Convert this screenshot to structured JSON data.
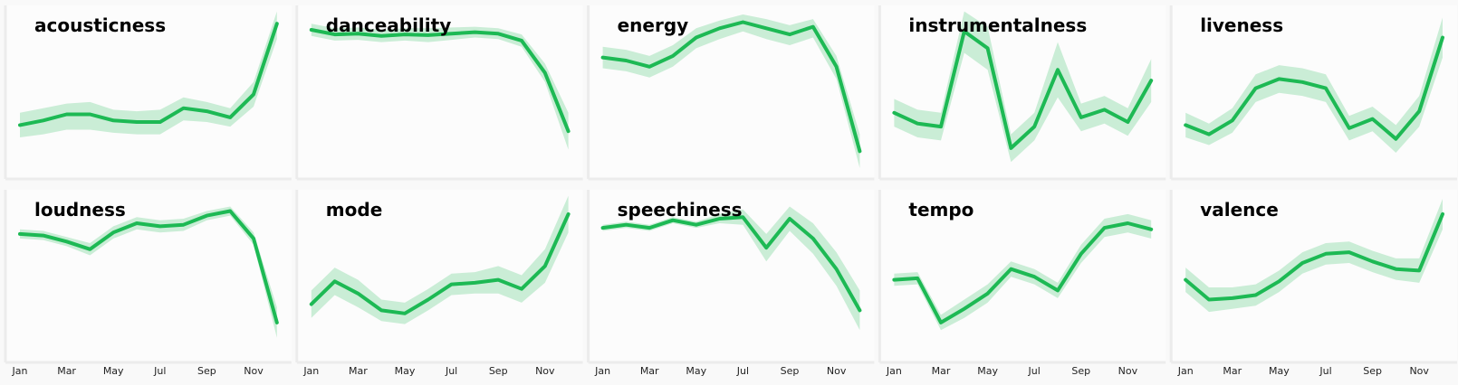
{
  "colors": {
    "line": "#1db954",
    "band": "#1db954"
  },
  "x_ticks": [
    "Jan",
    "Mar",
    "May",
    "Jul",
    "Sep",
    "Nov"
  ],
  "chart_data": [
    {
      "type": "line",
      "title": "acousticness",
      "x": [
        1,
        2,
        3,
        4,
        5,
        6,
        7,
        8,
        9,
        10,
        11,
        12
      ],
      "values": [
        0.28,
        0.31,
        0.35,
        0.35,
        0.31,
        0.3,
        0.3,
        0.39,
        0.37,
        0.33,
        0.48,
        0.94
      ],
      "lower": [
        0.2,
        0.22,
        0.25,
        0.25,
        0.23,
        0.22,
        0.22,
        0.31,
        0.3,
        0.27,
        0.4,
        0.84
      ],
      "upper": [
        0.36,
        0.39,
        0.42,
        0.43,
        0.38,
        0.37,
        0.38,
        0.46,
        0.43,
        0.39,
        0.56,
        1.02
      ]
    },
    {
      "type": "line",
      "title": "danceability",
      "x": [
        1,
        2,
        3,
        4,
        5,
        6,
        7,
        8,
        9,
        10,
        11,
        12
      ],
      "values": [
        0.9,
        0.87,
        0.875,
        0.86,
        0.87,
        0.865,
        0.875,
        0.885,
        0.875,
        0.83,
        0.62,
        0.24
      ],
      "lower": [
        0.86,
        0.83,
        0.835,
        0.82,
        0.83,
        0.82,
        0.835,
        0.85,
        0.84,
        0.79,
        0.56,
        0.12
      ],
      "upper": [
        0.94,
        0.91,
        0.915,
        0.9,
        0.91,
        0.91,
        0.915,
        0.92,
        0.91,
        0.87,
        0.68,
        0.36
      ]
    },
    {
      "type": "line",
      "title": "energy",
      "x": [
        1,
        2,
        3,
        4,
        5,
        6,
        7,
        8,
        9,
        10,
        11,
        12
      ],
      "values": [
        0.72,
        0.7,
        0.66,
        0.73,
        0.85,
        0.91,
        0.95,
        0.91,
        0.87,
        0.92,
        0.66,
        0.11
      ],
      "lower": [
        0.65,
        0.63,
        0.59,
        0.66,
        0.78,
        0.84,
        0.89,
        0.84,
        0.8,
        0.85,
        0.58,
        0.0
      ],
      "upper": [
        0.79,
        0.77,
        0.73,
        0.8,
        0.91,
        0.96,
        1.0,
        0.97,
        0.93,
        0.97,
        0.73,
        0.22
      ]
    },
    {
      "type": "line",
      "title": "instrumentalness",
      "x": [
        1,
        2,
        3,
        4,
        5,
        6,
        7,
        8,
        9,
        10,
        11,
        12
      ],
      "values": [
        0.36,
        0.29,
        0.27,
        0.89,
        0.78,
        0.13,
        0.27,
        0.64,
        0.33,
        0.38,
        0.3,
        0.57
      ],
      "lower": [
        0.27,
        0.2,
        0.18,
        0.75,
        0.64,
        0.04,
        0.18,
        0.46,
        0.24,
        0.29,
        0.21,
        0.43
      ],
      "upper": [
        0.45,
        0.38,
        0.36,
        1.02,
        0.92,
        0.22,
        0.36,
        0.82,
        0.42,
        0.47,
        0.39,
        0.71
      ]
    },
    {
      "type": "line",
      "title": "liveness",
      "x": [
        1,
        2,
        3,
        4,
        5,
        6,
        7,
        8,
        9,
        10,
        11,
        12
      ],
      "values": [
        0.28,
        0.22,
        0.31,
        0.52,
        0.58,
        0.56,
        0.52,
        0.26,
        0.32,
        0.19,
        0.37,
        0.85
      ],
      "lower": [
        0.2,
        0.15,
        0.23,
        0.43,
        0.49,
        0.47,
        0.43,
        0.18,
        0.24,
        0.1,
        0.27,
        0.72
      ],
      "upper": [
        0.36,
        0.29,
        0.39,
        0.61,
        0.67,
        0.65,
        0.61,
        0.34,
        0.4,
        0.28,
        0.47,
        0.98
      ]
    },
    {
      "type": "line",
      "title": "loudness",
      "x": [
        1,
        2,
        3,
        4,
        5,
        6,
        7,
        8,
        9,
        10,
        11,
        12
      ],
      "values": [
        0.77,
        0.76,
        0.72,
        0.67,
        0.78,
        0.84,
        0.82,
        0.83,
        0.89,
        0.92,
        0.74,
        0.19
      ],
      "lower": [
        0.74,
        0.73,
        0.69,
        0.63,
        0.74,
        0.8,
        0.78,
        0.79,
        0.86,
        0.89,
        0.7,
        0.09
      ],
      "upper": [
        0.8,
        0.79,
        0.75,
        0.71,
        0.82,
        0.88,
        0.86,
        0.87,
        0.92,
        0.95,
        0.78,
        0.29
      ]
    },
    {
      "type": "line",
      "title": "mode",
      "x": [
        1,
        2,
        3,
        4,
        5,
        6,
        7,
        8,
        9,
        10,
        11,
        12
      ],
      "values": [
        0.31,
        0.46,
        0.38,
        0.27,
        0.25,
        0.34,
        0.44,
        0.45,
        0.47,
        0.41,
        0.56,
        0.9
      ],
      "lower": [
        0.22,
        0.37,
        0.29,
        0.2,
        0.18,
        0.27,
        0.37,
        0.38,
        0.38,
        0.32,
        0.45,
        0.78
      ],
      "upper": [
        0.4,
        0.55,
        0.47,
        0.34,
        0.32,
        0.41,
        0.51,
        0.52,
        0.56,
        0.5,
        0.67,
        1.02
      ]
    },
    {
      "type": "line",
      "title": "speechiness",
      "x": [
        1,
        2,
        3,
        4,
        5,
        6,
        7,
        8,
        9,
        10,
        11,
        12
      ],
      "values": [
        0.81,
        0.83,
        0.81,
        0.86,
        0.83,
        0.87,
        0.88,
        0.68,
        0.87,
        0.74,
        0.54,
        0.27
      ],
      "lower": [
        0.79,
        0.81,
        0.79,
        0.84,
        0.81,
        0.84,
        0.83,
        0.59,
        0.79,
        0.64,
        0.43,
        0.14
      ],
      "upper": [
        0.83,
        0.85,
        0.83,
        0.88,
        0.85,
        0.9,
        0.93,
        0.77,
        0.95,
        0.84,
        0.65,
        0.4
      ]
    },
    {
      "type": "line",
      "title": "tempo",
      "x": [
        1,
        2,
        3,
        4,
        5,
        6,
        7,
        8,
        9,
        10,
        11,
        12
      ],
      "values": [
        0.47,
        0.48,
        0.19,
        0.28,
        0.38,
        0.54,
        0.49,
        0.4,
        0.64,
        0.81,
        0.84,
        0.8
      ],
      "lower": [
        0.43,
        0.44,
        0.14,
        0.22,
        0.32,
        0.49,
        0.44,
        0.35,
        0.58,
        0.75,
        0.78,
        0.74
      ],
      "upper": [
        0.51,
        0.52,
        0.24,
        0.34,
        0.44,
        0.59,
        0.54,
        0.45,
        0.7,
        0.87,
        0.9,
        0.86
      ]
    },
    {
      "type": "line",
      "title": "valence",
      "x": [
        1,
        2,
        3,
        4,
        5,
        6,
        7,
        8,
        9,
        10,
        11,
        12
      ],
      "values": [
        0.47,
        0.34,
        0.35,
        0.37,
        0.46,
        0.58,
        0.64,
        0.65,
        0.59,
        0.54,
        0.53,
        0.9
      ],
      "lower": [
        0.39,
        0.26,
        0.28,
        0.3,
        0.39,
        0.51,
        0.57,
        0.58,
        0.52,
        0.47,
        0.45,
        0.8
      ],
      "upper": [
        0.55,
        0.42,
        0.42,
        0.44,
        0.53,
        0.65,
        0.71,
        0.72,
        0.66,
        0.61,
        0.61,
        1.0
      ]
    }
  ]
}
